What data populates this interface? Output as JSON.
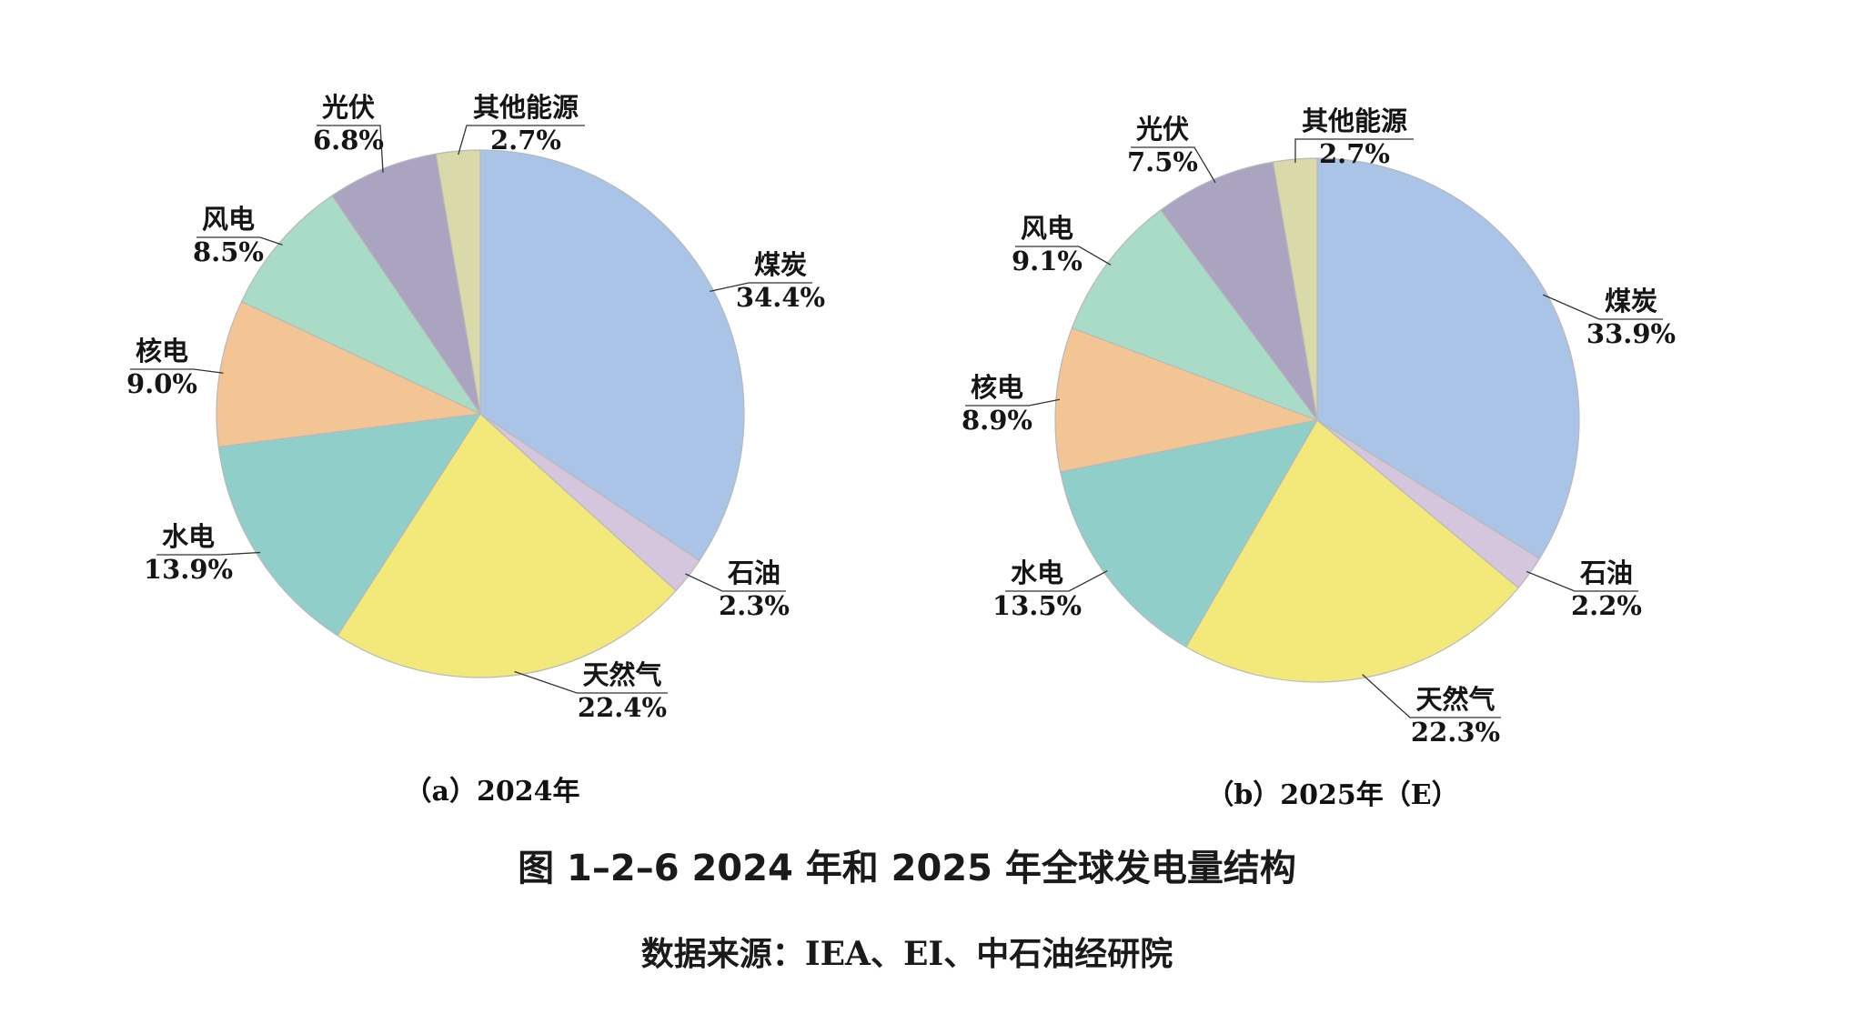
{
  "chart_data": [
    {
      "type": "pie",
      "subtitle": "（a）2024年",
      "start": "12 o'clock, clockwise",
      "slices": [
        {
          "label": "煤炭",
          "value": 34.4,
          "text": "34.4%",
          "color": "#a9c4e6"
        },
        {
          "label": "石油",
          "value": 2.3,
          "text": "2.3%",
          "color": "#d6c6dd"
        },
        {
          "label": "天然气",
          "value": 22.4,
          "text": "22.4%",
          "color": "#f3e87a"
        },
        {
          "label": "水电",
          "value": 13.9,
          "text": "13.9%",
          "color": "#90cfc9"
        },
        {
          "label": "核电",
          "value": 9.0,
          "text": "9.0%",
          "color": "#f3c594"
        },
        {
          "label": "风电",
          "value": 8.5,
          "text": "8.5%",
          "color": "#a9dcc6"
        },
        {
          "label": "光伏",
          "value": 6.8,
          "text": "6.8%",
          "color": "#aba4c0"
        },
        {
          "label": "其他能源",
          "value": 2.7,
          "text": "2.7%",
          "color": "#d9d9aa"
        }
      ]
    },
    {
      "type": "pie",
      "subtitle": "（b）2025年（E）",
      "start": "12 o'clock, clockwise",
      "slices": [
        {
          "label": "煤炭",
          "value": 33.9,
          "text": "33.9%",
          "color": "#a9c4e6"
        },
        {
          "label": "石油",
          "value": 2.2,
          "text": "2.2%",
          "color": "#d6c6dd"
        },
        {
          "label": "天然气",
          "value": 22.3,
          "text": "22.3%",
          "color": "#f3e87a"
        },
        {
          "label": "水电",
          "value": 13.5,
          "text": "13.5%",
          "color": "#90cfc9"
        },
        {
          "label": "核电",
          "value": 8.9,
          "text": "8.9%",
          "color": "#f3c594"
        },
        {
          "label": "风电",
          "value": 9.1,
          "text": "9.1%",
          "color": "#a9dcc6"
        },
        {
          "label": "光伏",
          "value": 7.5,
          "text": "7.5%",
          "color": "#aba4c0"
        },
        {
          "label": "其他能源",
          "value": 2.7,
          "text": "2.7%",
          "color": "#d9d9aa"
        }
      ]
    }
  ],
  "figure": {
    "title": "图 1–2–6   2024 年和 2025 年全球发电量结构",
    "source": "数据来源：IEA、EI、中石油经研院"
  }
}
